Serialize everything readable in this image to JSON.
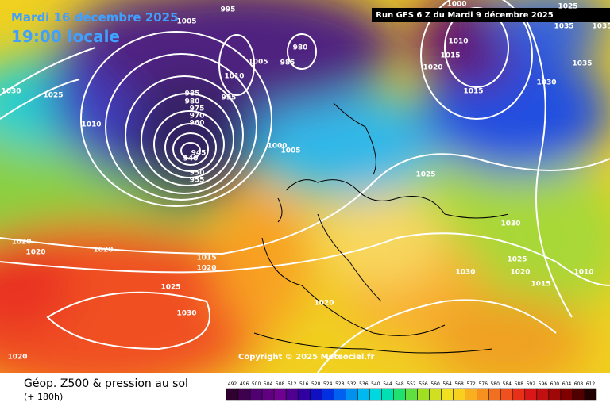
{
  "header": {
    "date": "Mardi 16 décembre 2025",
    "time": "19:00 locale"
  },
  "run_info": "Run GFS 6 Z du Mardi 9 décembre 2025",
  "copyright": "Copyright © 2025 Meteociel.fr",
  "isobar_labels": [
    "995",
    "1005",
    "1000",
    "1025",
    "1035",
    "1035",
    "1010",
    "1015",
    "1020",
    "1030",
    "1035",
    "1015",
    "1030",
    "1025",
    "1010",
    "985",
    "980",
    "1005",
    "1010",
    "995",
    "985",
    "980",
    "975",
    "970",
    "960",
    "945",
    "940",
    "950",
    "955",
    "1000",
    "1005",
    "1025",
    "1030",
    "1025",
    "1020",
    "1015",
    "1010",
    "1030",
    "1015",
    "1020",
    "1025",
    "1030",
    "1020",
    "1020",
    "1020",
    "1020",
    "1020"
  ],
  "legend": {
    "title": "Géop. Z500 & pression au sol",
    "subtitle": "(+ 180h)",
    "scale": [
      492,
      496,
      500,
      504,
      508,
      512,
      516,
      520,
      524,
      528,
      532,
      536,
      540,
      544,
      548,
      552,
      556,
      560,
      564,
      568,
      572,
      576,
      580,
      584,
      588,
      592,
      596,
      600,
      604,
      608,
      612
    ]
  }
}
